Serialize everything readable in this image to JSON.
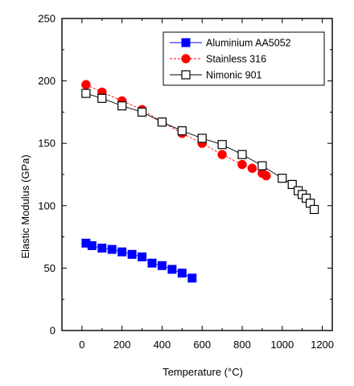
{
  "chart_data": {
    "type": "scatter",
    "xlabel": "Temperature (°C)",
    "ylabel": "Elastic Modulus (GPa)",
    "xlim": [
      -100,
      1250
    ],
    "ylim": [
      0,
      250
    ],
    "xticks": [
      0,
      200,
      400,
      600,
      800,
      1000,
      1200
    ],
    "yticks": [
      0,
      50,
      100,
      150,
      200,
      250
    ],
    "grid": false,
    "legend_position": "top-right",
    "series": [
      {
        "name": "Aluminium AA5052",
        "marker": "square-filled",
        "line": "solid",
        "color": "#0000ff",
        "x": [
          20,
          50,
          100,
          150,
          200,
          250,
          300,
          350,
          400,
          450,
          500,
          550
        ],
        "y": [
          70,
          68,
          66,
          65,
          63,
          61,
          59,
          54,
          52,
          49,
          46,
          42
        ]
      },
      {
        "name": "Stainless 316",
        "marker": "circle-filled",
        "line": "dashed",
        "color": "#ff0000",
        "x": [
          20,
          100,
          200,
          300,
          400,
          500,
          600,
          700,
          800,
          850,
          900,
          920
        ],
        "y": [
          197,
          191,
          184,
          177,
          167,
          158,
          150,
          141,
          133,
          130,
          126,
          124
        ]
      },
      {
        "name": "Nimonic 901",
        "marker": "square-open",
        "line": "solid",
        "color": "#000000",
        "x": [
          20,
          100,
          200,
          300,
          400,
          500,
          600,
          700,
          800,
          900,
          1000,
          1050,
          1080,
          1100,
          1120,
          1140,
          1160
        ],
        "y": [
          190,
          186,
          180,
          175,
          167,
          160,
          154,
          149,
          141,
          132,
          122,
          117,
          112,
          109,
          106,
          102,
          97
        ]
      }
    ]
  }
}
